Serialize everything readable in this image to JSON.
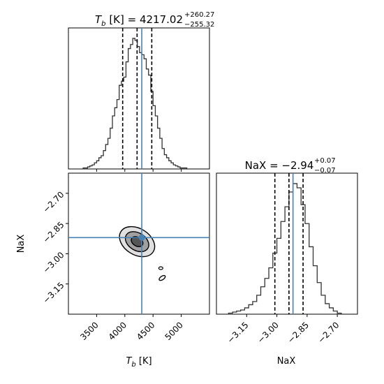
{
  "chart_data": {
    "type": "corner",
    "params": [
      {
        "name": "T_b",
        "label_symbol": "T",
        "label_subscript": "b",
        "label_unit": "[K]",
        "title_value": "4217.02",
        "title_plus": "+260.27",
        "title_minus": "−255.32",
        "median": 4217.02,
        "q16": 3961.7,
        "q84": 4477.29,
        "truth": 4300,
        "range": [
          3000,
          5500
        ],
        "ticks": [
          3500,
          4000,
          4500,
          5000
        ],
        "tick_labels": [
          "3500",
          "4000",
          "4500",
          "5000"
        ]
      },
      {
        "name": "NaX",
        "label": "NaX",
        "title_prefix": "NaX = ",
        "title_value": "−2.94",
        "title_plus": "+0.07",
        "title_minus": "−0.07",
        "median": -2.94,
        "q16": -3.01,
        "q84": -2.87,
        "truth": -2.92,
        "range": [
          -3.3,
          -2.6
        ],
        "ticks": [
          -3.15,
          -3.0,
          -2.85,
          -2.7
        ],
        "tick_labels": [
          "−3.15",
          "−3.00",
          "−2.85",
          "−2.70"
        ]
      }
    ],
    "hist_Tb": {
      "bins": [
        3260,
        3300,
        3340,
        3380,
        3420,
        3460,
        3500,
        3540,
        3580,
        3620,
        3660,
        3700,
        3740,
        3780,
        3820,
        3860,
        3900,
        3940,
        3980,
        4020,
        4060,
        4100,
        4140,
        4180,
        4220,
        4260,
        4300,
        4340,
        4380,
        4420,
        4460,
        4500,
        4540,
        4580,
        4620,
        4660,
        4700,
        4740,
        4780,
        4820,
        4860,
        4900,
        4940,
        4980,
        5020,
        5060
      ],
      "counts": [
        1,
        1,
        2,
        3,
        4,
        6,
        8,
        11,
        13,
        18,
        24,
        30,
        40,
        52,
        60,
        68,
        82,
        86,
        90,
        105,
        118,
        122,
        128,
        126,
        120,
        114,
        112,
        108,
        98,
        92,
        76,
        62,
        52,
        40,
        30,
        20,
        14,
        11,
        8,
        6,
        4,
        3,
        2,
        1,
        1,
        1
      ]
    },
    "hist_NaX": {
      "bins": [
        -3.24,
        -3.22,
        -3.2,
        -3.18,
        -3.16,
        -3.14,
        -3.12,
        -3.1,
        -3.08,
        -3.06,
        -3.04,
        -3.02,
        -3.0,
        -2.98,
        -2.96,
        -2.94,
        -2.92,
        -2.9,
        -2.88,
        -2.86,
        -2.84,
        -2.82,
        -2.8,
        -2.78,
        -2.76,
        -2.74,
        -2.72,
        -2.7
      ],
      "counts": [
        1,
        2,
        3,
        4,
        6,
        9,
        12,
        18,
        26,
        34,
        44,
        58,
        72,
        88,
        102,
        116,
        124,
        120,
        104,
        86,
        64,
        46,
        30,
        18,
        10,
        6,
        3,
        1
      ]
    },
    "contours_2d": {
      "center": [
        4217,
        -2.94
      ],
      "levels": [
        {
          "fill": "#555555",
          "rx": 150,
          "ry": 0.035
        },
        {
          "fill": "#a0a0a0",
          "rx": 300,
          "ry": 0.07
        },
        {
          "fill": "#e0e0e0",
          "rx": 450,
          "ry": 0.105
        }
      ],
      "tilt": -0.00021
    },
    "truth_color": "#4682b4",
    "grid": false
  }
}
